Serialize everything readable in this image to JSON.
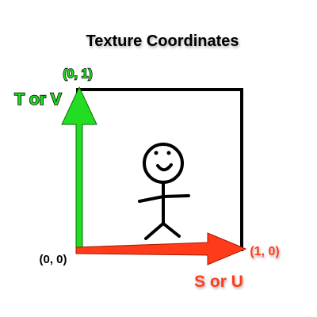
{
  "title": "Texture Coordinates",
  "labels": {
    "origin": "(0, 0)",
    "top_left": "(0, 1)",
    "bottom_right": "(1, 0)",
    "vertical_axis": "T or V",
    "horizontal_axis": "S or U"
  },
  "colors": {
    "vertical_axis": "#22dd22",
    "horizontal_axis": "#ff3b1a",
    "frame": "#000000",
    "text": "#000000",
    "label_shadow": "#ffffff"
  },
  "icons": {
    "figure": "stick-figure-icon"
  }
}
